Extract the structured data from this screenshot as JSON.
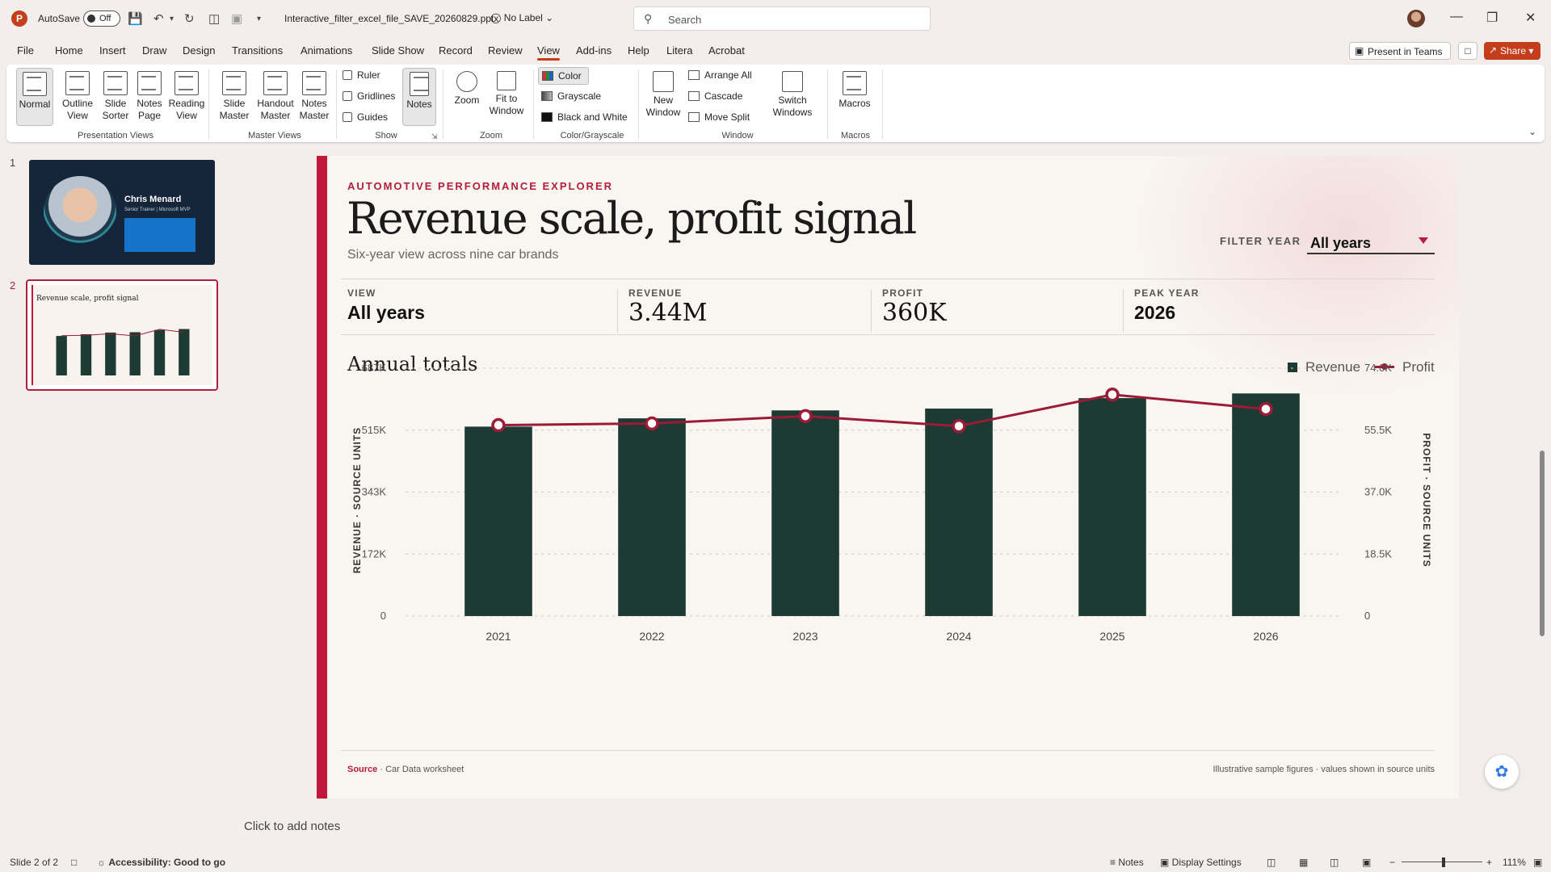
{
  "titlebar": {
    "app_logo": "P",
    "autosave_label": "AutoSave",
    "autosave_state": "Off",
    "filename": "Interactive_filter_excel_file_SAVE_20260829.pptx",
    "label": "No Label",
    "search_placeholder": "Search"
  },
  "menu": {
    "items": [
      "File",
      "Home",
      "Insert",
      "Draw",
      "Design",
      "Transitions",
      "Animations",
      "Slide Show",
      "Record",
      "Review",
      "View",
      "Add-ins",
      "Help",
      "Litera",
      "Acrobat"
    ],
    "active": "View",
    "present_in_teams": "Present in Teams",
    "share": "Share"
  },
  "ribbon": {
    "presentation_views": {
      "label": "Presentation Views",
      "normal": "Normal",
      "outline_view": "Outline View",
      "slide_sorter": "Slide Sorter",
      "notes_page": "Notes Page",
      "reading_view": "Reading View"
    },
    "master_views": {
      "label": "Master Views",
      "slide_master": "Slide Master",
      "handout_master": "Handout Master",
      "notes_master": "Notes Master"
    },
    "show": {
      "label": "Show",
      "ruler": "Ruler",
      "gridlines": "Gridlines",
      "guides": "Guides",
      "notes": "Notes"
    },
    "zoom": {
      "label": "Zoom",
      "zoom": "Zoom",
      "fit_to_window": "Fit to Window"
    },
    "color_grayscale": {
      "label": "Color/Grayscale",
      "color": "Color",
      "grayscale": "Grayscale",
      "black_and_white": "Black and White"
    },
    "window": {
      "label": "Window",
      "new_window": "New Window",
      "arrange_all": "Arrange All",
      "cascade": "Cascade",
      "move_split": "Move Split",
      "switch_windows": "Switch Windows"
    },
    "macros": {
      "label": "Macros",
      "macros": "Macros"
    }
  },
  "thumbnails": {
    "slide1": {
      "num": "1",
      "name": "Chris Menard",
      "role": "Senior Trainer | Microsoft MVP"
    },
    "slide2": {
      "num": "2",
      "title": "Revenue scale, profit signal"
    }
  },
  "slide": {
    "eyebrow": "AUTOMOTIVE PERFORMANCE EXPLORER",
    "title": "Revenue scale, profit signal",
    "subtitle": "Six-year view across nine car brands",
    "filter_label": "FILTER YEAR",
    "filter_value": "All years",
    "kpis": {
      "view": {
        "label": "VIEW",
        "value": "All years"
      },
      "revenue": {
        "label": "REVENUE",
        "value": "3.44M"
      },
      "profit": {
        "label": "PROFIT",
        "value": "360K"
      },
      "peak_year": {
        "label": "PEAK YEAR",
        "value": "2026"
      }
    },
    "chart_heading": "Annual totals",
    "legend": {
      "revenue": "Revenue",
      "profit": "Profit"
    },
    "source_label": "Source",
    "source_text": " · Car Data worksheet",
    "note": "Illustrative sample figures · values shown in source units"
  },
  "chart_data": {
    "type": "bar",
    "categories": [
      "2021",
      "2022",
      "2023",
      "2024",
      "2025",
      "2026"
    ],
    "series": [
      {
        "name": "Revenue",
        "type": "bar",
        "axis": "left",
        "values": [
          525000,
          548000,
          570000,
          575000,
          604000,
          617000
        ]
      },
      {
        "name": "Profit",
        "type": "line",
        "axis": "right",
        "values": [
          57000,
          57500,
          59700,
          56700,
          66100,
          61800
        ]
      }
    ],
    "ylabel": "REVENUE · SOURCE UNITS",
    "y2label": "PROFIT · SOURCE UNITS",
    "ylim": [
      0,
      687000
    ],
    "y2lim": [
      0,
      74000
    ],
    "yticks": [
      "0",
      "172K",
      "343K",
      "515K",
      "687K"
    ],
    "y2ticks": [
      "0",
      "18.5K",
      "37.0K",
      "55.5K",
      "74.0K"
    ],
    "grid": true,
    "legend": "top-right",
    "colors": {
      "bar": "#1d3a33",
      "line": "#9c1b36"
    }
  },
  "notes_placeholder": "Click to add notes",
  "status": {
    "slide": "Slide 2 of 2",
    "accessibility": "Accessibility: Good to go",
    "notes": "Notes",
    "display_settings": "Display Settings",
    "zoom": "111%"
  }
}
